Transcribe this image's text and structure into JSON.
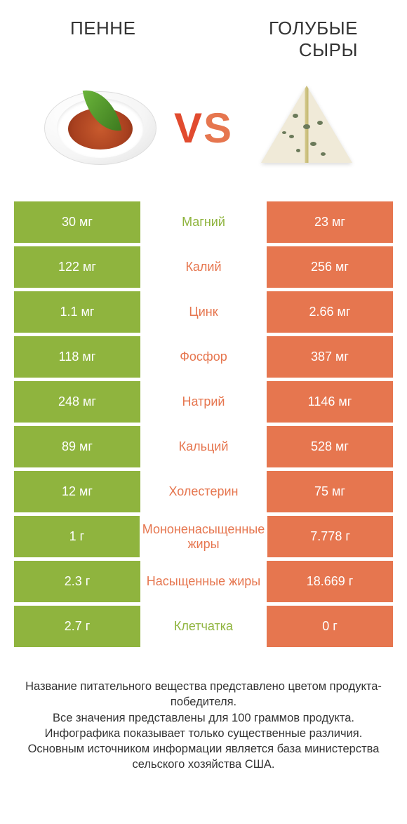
{
  "colors": {
    "left_bar": "#8fb43e",
    "right_bar": "#e6764f",
    "label_green": "#8fb43e",
    "label_orange": "#e6764f",
    "text": "#333333",
    "white": "#ffffff"
  },
  "products": {
    "left": "ПЕННЕ",
    "right": "ГОЛУБЫЕ СЫРЫ"
  },
  "vs": "VS",
  "rows": [
    {
      "left": "30 мг",
      "label": "Магний",
      "right": "23 мг",
      "winner": "left"
    },
    {
      "left": "122 мг",
      "label": "Калий",
      "right": "256 мг",
      "winner": "right"
    },
    {
      "left": "1.1 мг",
      "label": "Цинк",
      "right": "2.66 мг",
      "winner": "right"
    },
    {
      "left": "118 мг",
      "label": "Фосфор",
      "right": "387 мг",
      "winner": "right"
    },
    {
      "left": "248 мг",
      "label": "Натрий",
      "right": "1146 мг",
      "winner": "right"
    },
    {
      "left": "89 мг",
      "label": "Кальций",
      "right": "528 мг",
      "winner": "right"
    },
    {
      "left": "12 мг",
      "label": "Холестерин",
      "right": "75 мг",
      "winner": "right"
    },
    {
      "left": "1 г",
      "label": "Мононенасыщенные жиры",
      "right": "7.778 г",
      "winner": "right"
    },
    {
      "left": "2.3 г",
      "label": "Насыщенные жиры",
      "right": "18.669 г",
      "winner": "right"
    },
    {
      "left": "2.7 г",
      "label": "Клетчатка",
      "right": "0 г",
      "winner": "left"
    }
  ],
  "footer": {
    "line1": "Название питательного вещества представлено цветом продукта-победителя.",
    "line2": "Все значения представлены для 100 граммов продукта.",
    "line3": "Инфографика показывает только существенные различия.",
    "line4": "Основным источником информации является база министерства сельского хозяйства США."
  }
}
